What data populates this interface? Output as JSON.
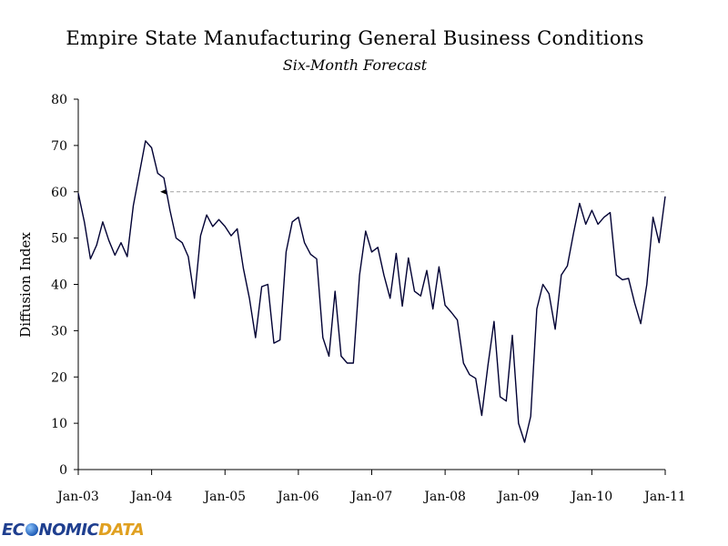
{
  "chart_data": {
    "type": "line",
    "title": "Empire State Manufacturing General Business Conditions",
    "subtitle": "Six-Month Forecast",
    "ylabel": "Diffusion Index",
    "xlabel": "",
    "x_ticks": [
      "Jan-03",
      "Jan-04",
      "Jan-05",
      "Jan-06",
      "Jan-07",
      "Jan-08",
      "Jan-09",
      "Jan-10",
      "Jan-11"
    ],
    "y_ticks": [
      0,
      10,
      20,
      30,
      40,
      50,
      60,
      70,
      80
    ],
    "ylim": [
      0,
      80
    ],
    "x_start": "Jan-03",
    "x_end": "Jan-11",
    "grid": false,
    "legend": "none",
    "line_color": "#000033",
    "reference_line": {
      "value": 60,
      "from": "Mar-04",
      "to": "Jan-11",
      "style": "dashed",
      "color": "#a0a0a0"
    },
    "series": [
      {
        "x": [
          "Jan-03",
          "Feb-03",
          "Mar-03",
          "Apr-03",
          "May-03",
          "Jun-03",
          "Jul-03",
          "Aug-03",
          "Sep-03",
          "Oct-03",
          "Nov-03",
          "Dec-03",
          "Jan-04",
          "Feb-04",
          "Mar-04",
          "Apr-04",
          "May-04",
          "Jun-04",
          "Jul-04",
          "Aug-04",
          "Sep-04",
          "Oct-04",
          "Nov-04",
          "Dec-04",
          "Jan-05",
          "Feb-05",
          "Mar-05",
          "Apr-05",
          "May-05",
          "Jun-05",
          "Jul-05",
          "Aug-05",
          "Sep-05",
          "Oct-05",
          "Nov-05",
          "Dec-05",
          "Jan-06",
          "Feb-06",
          "Mar-06",
          "Apr-06",
          "May-06",
          "Jun-06",
          "Jul-06",
          "Aug-06",
          "Sep-06",
          "Oct-06",
          "Nov-06",
          "Dec-06",
          "Jan-07",
          "Feb-07",
          "Mar-07",
          "Apr-07",
          "May-07",
          "Jun-07",
          "Jul-07",
          "Aug-07",
          "Sep-07",
          "Oct-07",
          "Nov-07",
          "Dec-07",
          "Jan-08",
          "Feb-08",
          "Mar-08",
          "Apr-08",
          "May-08",
          "Jun-08",
          "Jul-08",
          "Aug-08",
          "Sep-08",
          "Oct-08",
          "Nov-08",
          "Dec-08",
          "Jan-09",
          "Feb-09",
          "Mar-09",
          "Apr-09",
          "May-09",
          "Jun-09",
          "Jul-09",
          "Aug-09",
          "Sep-09",
          "Oct-09",
          "Nov-09",
          "Dec-09",
          "Jan-10",
          "Feb-10",
          "Mar-10",
          "Apr-10",
          "May-10",
          "Jun-10",
          "Jul-10",
          "Aug-10",
          "Sep-10",
          "Oct-10",
          "Nov-10",
          "Dec-10",
          "Jan-11"
        ],
        "values": [
          59.7,
          53.5,
          45.5,
          48.5,
          53.5,
          49.5,
          46.3,
          49.0,
          46.0,
          57.0,
          64.0,
          71.0,
          69.5,
          64.0,
          63.0,
          56.0,
          50.0,
          49.0,
          46.0,
          37.0,
          50.5,
          55.0,
          52.5,
          54.0,
          52.5,
          50.5,
          52.0,
          43.5,
          37.0,
          28.5,
          39.5,
          40.0,
          27.3,
          28.0,
          47.0,
          53.5,
          54.5,
          49.0,
          46.5,
          45.5,
          28.5,
          24.5,
          38.5,
          24.5,
          23.0,
          23.0,
          42.0,
          51.5,
          47.0,
          48.0,
          42.0,
          37.0,
          46.7,
          35.3,
          45.7,
          38.5,
          37.5,
          43.0,
          34.7,
          43.8,
          35.5,
          34.0,
          32.3,
          23.0,
          20.5,
          19.7,
          11.7,
          22.5,
          32.0,
          15.7,
          14.8,
          29.0,
          10.0,
          5.9,
          11.5,
          34.7,
          40.0,
          38.0,
          30.3,
          42.0,
          44.0,
          51.0,
          57.5,
          53.0,
          56.0,
          53.0,
          54.5,
          55.5,
          42.0,
          41.0,
          41.3,
          36.0,
          31.5,
          40.0,
          54.5,
          49.0,
          59.0
        ]
      }
    ]
  },
  "branding": {
    "logo_part1": "EC",
    "logo_part2": "NOMIC",
    "logo_part3": "DATA"
  }
}
